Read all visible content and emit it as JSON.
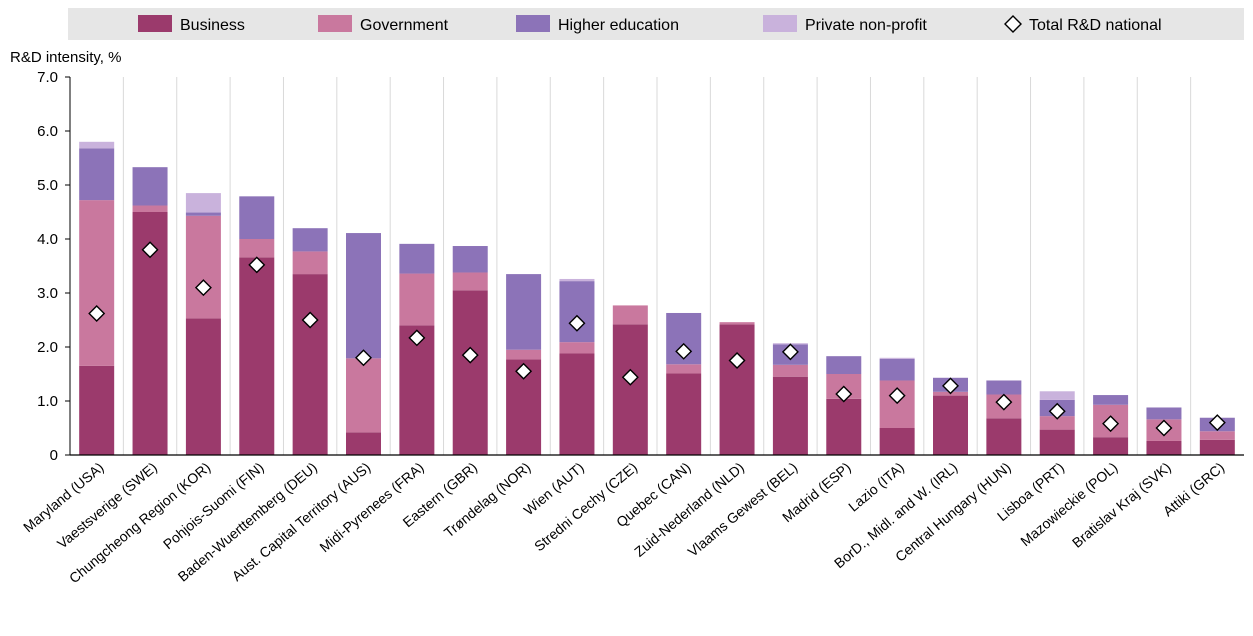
{
  "chart_data": {
    "type": "bar",
    "stacked": true,
    "ylabel": "R&D intensity, %",
    "ylim": [
      0,
      7
    ],
    "yticks": [
      "0",
      "1.0",
      "2.0",
      "3.0",
      "4.0",
      "5.0",
      "6.0",
      "7.0"
    ],
    "grid": "vertical separators between bars",
    "legend_position": "top",
    "legend": [
      {
        "label": "Business",
        "color": "#9b3a6c",
        "marker": "box"
      },
      {
        "label": "Government",
        "color": "#c9789e",
        "marker": "box"
      },
      {
        "label": "Higher education",
        "color": "#8c73b8",
        "marker": "box"
      },
      {
        "label": "Private non-profit",
        "color": "#c9b2dc",
        "marker": "box"
      },
      {
        "label": "Total R&D national",
        "color": "#ffffff",
        "marker": "diamond"
      }
    ],
    "categories": [
      "Maryland (USA)",
      "Vaestsverige (SWE)",
      "Chungcheong Region (KOR)",
      "Pohjois-Suomi (FIN)",
      "Baden-Wuerttemberg (DEU)",
      "Aust. Capital Territory (AUS)",
      "Midi-Pyrenees (FRA)",
      "Eastern (GBR)",
      "Trøndelag (NOR)",
      "Wien (AUT)",
      "Stredni Cechy (CZE)",
      "Quebec (CAN)",
      "Zuid-Nederland (NLD)",
      "Vlaams Gewest (BEL)",
      "Madrid (ESP)",
      "Lazio (ITA)",
      "BorD., Midl. and W. (IRL)",
      "Central Hungary (HUN)",
      "Lisboa (PRT)",
      "Mazowieckie (POL)",
      "Bratislav Kraj (SVK)",
      "Attiki (GRC)"
    ],
    "series": [
      {
        "name": "Business",
        "color": "#9b3a6c",
        "values": [
          1.65,
          4.5,
          2.53,
          3.66,
          3.35,
          0.42,
          2.4,
          3.05,
          1.77,
          1.88,
          2.42,
          1.51,
          2.42,
          1.45,
          1.04,
          0.5,
          1.1,
          0.68,
          0.47,
          0.33,
          0.26,
          0.28
        ]
      },
      {
        "name": "Government",
        "color": "#c9789e",
        "values": [
          3.07,
          0.12,
          1.9,
          0.34,
          0.42,
          1.37,
          0.96,
          0.33,
          0.18,
          0.21,
          0.35,
          0.17,
          0.04,
          0.22,
          0.46,
          0.88,
          0.07,
          0.44,
          0.25,
          0.6,
          0.4,
          0.16
        ]
      },
      {
        "name": "Higher education",
        "color": "#8c73b8",
        "values": [
          0.96,
          0.71,
          0.06,
          0.79,
          0.43,
          2.32,
          0.55,
          0.49,
          1.4,
          1.13,
          0.0,
          0.95,
          0.0,
          0.38,
          0.33,
          0.4,
          0.26,
          0.26,
          0.3,
          0.18,
          0.22,
          0.25
        ]
      },
      {
        "name": "Private non-profit",
        "color": "#c9b2dc",
        "values": [
          0.12,
          0.0,
          0.36,
          0.0,
          0.0,
          0.0,
          0.0,
          0.0,
          0.0,
          0.04,
          0.0,
          0.0,
          0.0,
          0.02,
          0.0,
          0.02,
          0.0,
          0.0,
          0.16,
          0.0,
          0.0,
          0.0
        ]
      }
    ],
    "markers": {
      "name": "Total R&D national",
      "values": [
        2.62,
        3.8,
        3.1,
        3.52,
        2.5,
        1.8,
        2.17,
        1.85,
        1.55,
        2.44,
        1.44,
        1.92,
        1.75,
        1.91,
        1.13,
        1.1,
        1.28,
        0.98,
        0.81,
        0.58,
        0.5,
        0.6
      ]
    }
  }
}
